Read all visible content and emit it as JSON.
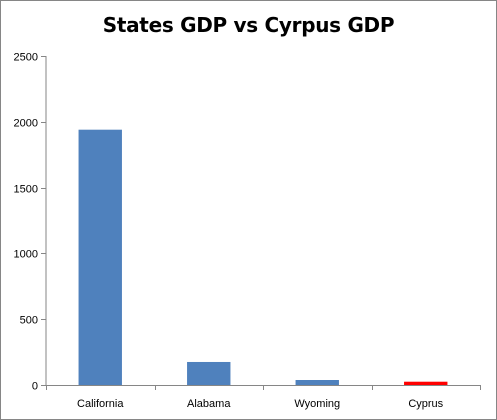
{
  "chart_data": {
    "type": "bar",
    "title": "States GDP vs Cyrpus GDP",
    "xlabel": "",
    "ylabel": "",
    "categories": [
      "California",
      "Alabama",
      "Wyoming",
      "Cyprus"
    ],
    "values": [
      1940,
      175,
      38,
      25
    ],
    "bar_colors": [
      "#4f81bd",
      "#4f81bd",
      "#4f81bd",
      "#ff0000"
    ],
    "ylim": [
      0,
      2500
    ],
    "yticks": [
      0,
      500,
      1000,
      1500,
      2000,
      2500
    ],
    "grid": false,
    "legend": "none"
  }
}
